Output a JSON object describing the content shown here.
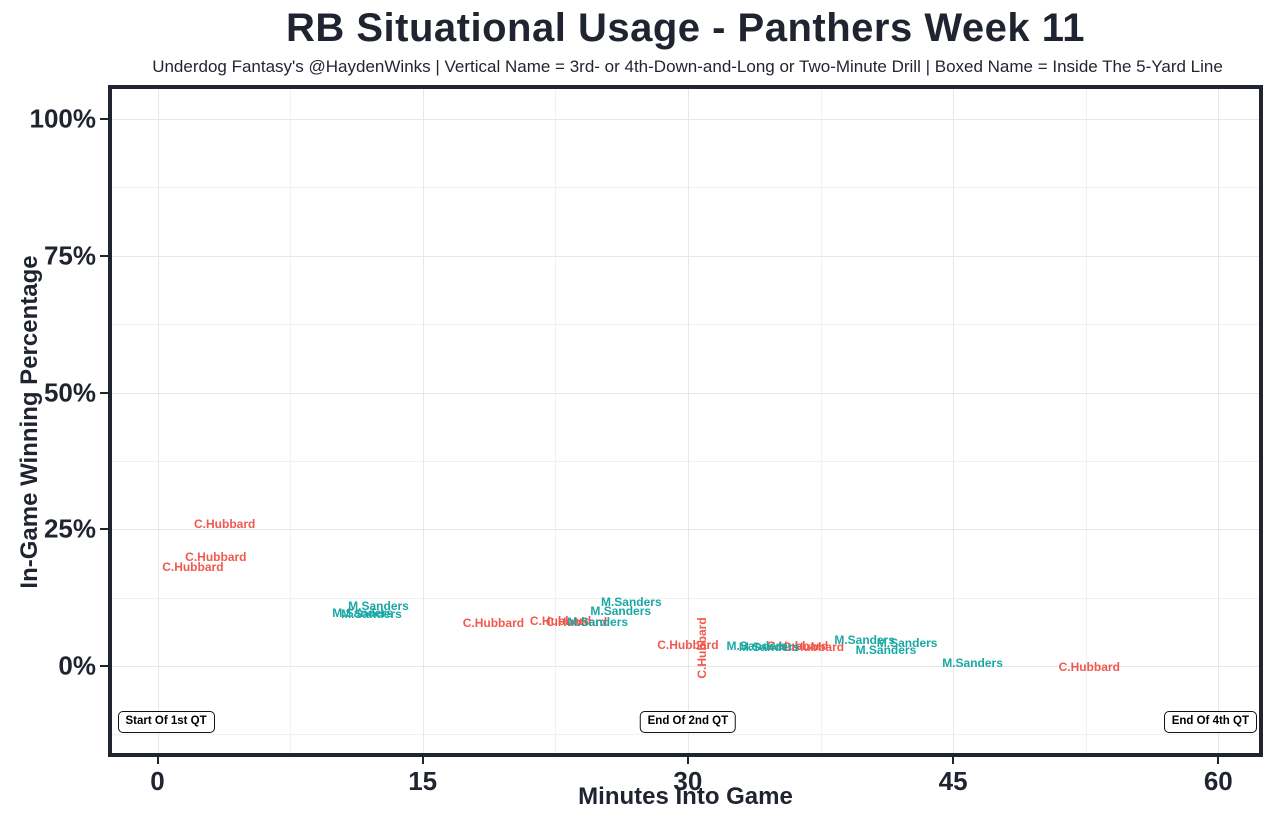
{
  "title": "RB Situational Usage - Panthers Week 11",
  "subtitle": "Underdog Fantasy's @HaydenWinks | Vertical Name = 3rd- or 4th-Down-and-Long or Two-Minute Drill | Boxed Name = Inside The 5-Yard Line",
  "colors": {
    "hubbard_red": "#F0594E",
    "sanders_teal": "#1AA8A5",
    "axis_text": "#1F2430",
    "panel_border": "#1F2430",
    "grid_major": "#E7E7E7",
    "grid_minor": "#F1F1F1"
  },
  "chart_data": {
    "type": "scatter",
    "title": "RB Situational Usage - Panthers Week 11",
    "xlabel": "Minutes Into Game",
    "ylabel": "In-Game Winning Percentage",
    "x_ticks": [
      0,
      15,
      30,
      45,
      60
    ],
    "x_minor_ticks": [
      7.5,
      22.5,
      37.5,
      52.5
    ],
    "y_ticks_pct": [
      0,
      25,
      50,
      75,
      100
    ],
    "y_tick_labels": [
      "0%",
      "25%",
      "50%",
      "75%",
      "100%"
    ],
    "y_minor_ticks_pct": [
      -12.5,
      12.5,
      37.5,
      62.5,
      87.5
    ],
    "xlim": [
      -2.5,
      62.3
    ],
    "ylim_pct": [
      -15.5,
      105
    ],
    "grid": "major+minor",
    "legend": "none",
    "point_style": "text-label",
    "series": [
      {
        "name": "C.Hubbard",
        "color": "#F0594E",
        "points": [
          {
            "x": 3.8,
            "y": 26.0
          },
          {
            "x": 3.3,
            "y": 19.9
          },
          {
            "x": 2.0,
            "y": 18.1
          },
          {
            "x": 19.0,
            "y": 7.9
          },
          {
            "x": 22.8,
            "y": 8.2
          },
          {
            "x": 23.7,
            "y": 8.0
          },
          {
            "x": 30.0,
            "y": 3.8
          },
          {
            "x": 30.8,
            "y": 3.3,
            "vertical": true
          },
          {
            "x": 36.2,
            "y": 3.7
          },
          {
            "x": 37.1,
            "y": 3.5
          },
          {
            "x": 52.7,
            "y": -0.2
          }
        ]
      },
      {
        "name": "M.Sanders",
        "color": "#1AA8A5",
        "points": [
          {
            "x": 12.5,
            "y": 11.0
          },
          {
            "x": 11.6,
            "y": 9.7
          },
          {
            "x": 12.1,
            "y": 9.5
          },
          {
            "x": 26.8,
            "y": 11.7
          },
          {
            "x": 26.2,
            "y": 10.1
          },
          {
            "x": 24.9,
            "y": 8.0
          },
          {
            "x": 33.9,
            "y": 3.7
          },
          {
            "x": 34.6,
            "y": 3.5
          },
          {
            "x": 40.0,
            "y": 4.8
          },
          {
            "x": 42.4,
            "y": 4.2
          },
          {
            "x": 41.2,
            "y": 2.9
          },
          {
            "x": 46.1,
            "y": 0.5
          }
        ]
      }
    ],
    "annotations": [
      {
        "label": "Start Of 1st QT",
        "x_min": 0,
        "y_pct": -10.1,
        "align": "left"
      },
      {
        "label": "End Of 2nd QT",
        "x_min": 30,
        "y_pct": -10.1,
        "align": "center"
      },
      {
        "label": "End Of 4th QT",
        "x_min": 60,
        "y_pct": -10.1,
        "align": "right"
      }
    ]
  }
}
